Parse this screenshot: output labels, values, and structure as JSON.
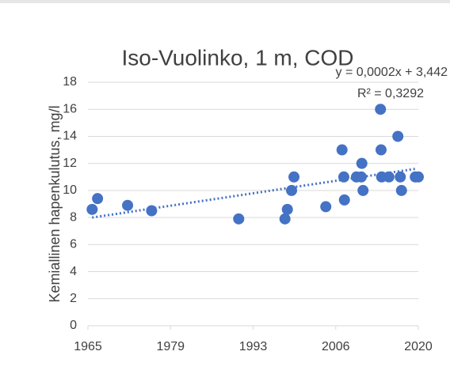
{
  "chart_data": {
    "type": "scatter",
    "title": "Iso-Vuolinko, 1 m, COD",
    "y_label": "Kemiallinen hapenkulutus, mg/l",
    "annotations": [
      "y = 0,0002x + 3,442",
      "R² = 0,3292"
    ],
    "series": [
      {
        "name": "COD",
        "color": "#4472c4",
        "x": [
          1965.7,
          1966.6,
          1971.6,
          1975.6,
          1990.1,
          1997.8,
          1998.2,
          1998.9,
          1999.3,
          2004.6,
          2007.3,
          2007.6,
          2007.7,
          2009.7,
          2010.5,
          2010.6,
          2010.8,
          2013.7,
          2013.8,
          2013.9,
          2015.1,
          2016.6,
          2017.0,
          2017.2,
          2019.5,
          2020.0
        ],
        "values": [
          8.6,
          9.4,
          8.9,
          8.5,
          7.9,
          7.9,
          8.6,
          10.0,
          11.0,
          8.8,
          13.0,
          11.0,
          9.3,
          11.0,
          11.0,
          12.0,
          10.0,
          16.0,
          13.0,
          11.0,
          11.0,
          14.0,
          11.0,
          10.0,
          11.0,
          11.0
        ]
      }
    ],
    "trendline": {
      "color": "#4472c4",
      "x": [
        1965.7,
        2019.5
      ],
      "values": [
        8.0,
        11.6
      ]
    },
    "xlim": [
      1965,
      2020
    ],
    "xticks": [
      1965,
      {
        "value": 1978.75,
        "label": "1979"
      },
      {
        "value": 1992.5,
        "label": "1993"
      },
      {
        "value": 2006.25,
        "label": "2006"
      },
      2020
    ],
    "ylim": [
      0,
      18
    ],
    "yticks": [
      0,
      2,
      4,
      6,
      8,
      10,
      12,
      14,
      16,
      18
    ],
    "grid": true
  }
}
